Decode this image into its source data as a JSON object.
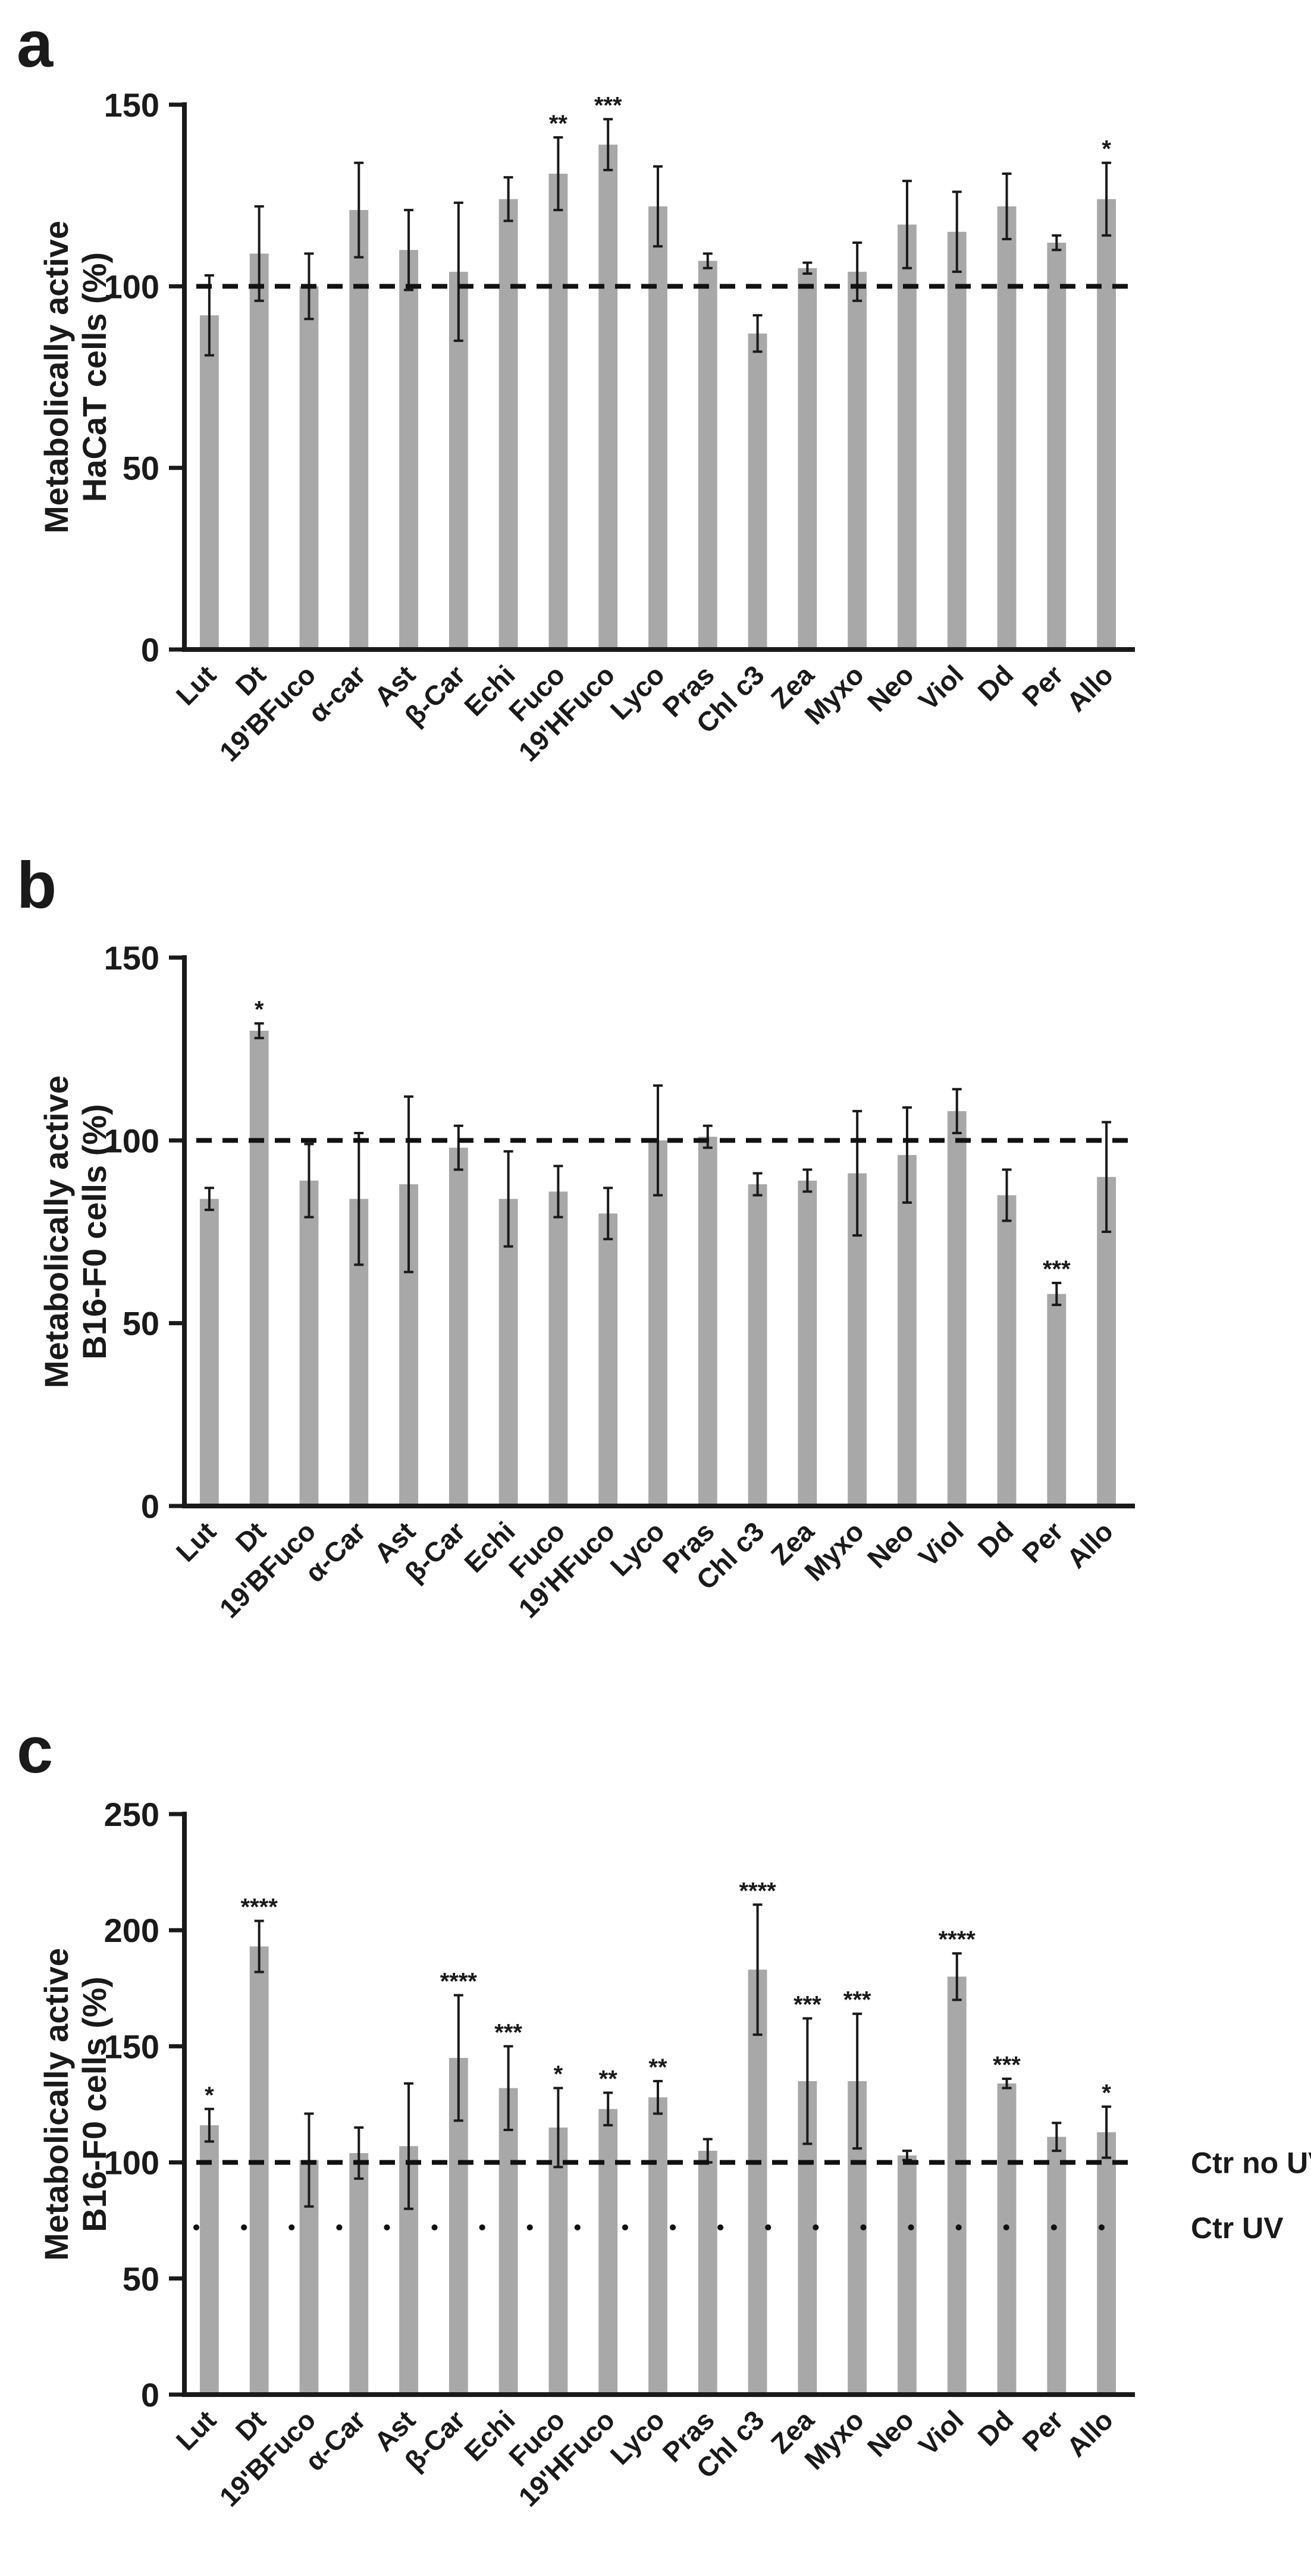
{
  "chart_data": [
    {
      "panel": "a",
      "type": "bar",
      "ylabel_lines": [
        "Metabolically active",
        "HaCaT cells (%)"
      ],
      "ylim": [
        0,
        150
      ],
      "yticks": [
        "0",
        "50",
        "100",
        "150"
      ],
      "categories": [
        "Lut",
        "Dt",
        "19'BFuco",
        "α-car",
        "Ast",
        "β-Car",
        "Echi",
        "Fuco",
        "19'HFuco",
        "Lyco",
        "Pras",
        "Chl c3",
        "Zea",
        "Myxo",
        "Neo",
        "Viol",
        "Dd",
        "Per",
        "Allo"
      ],
      "values": [
        92,
        109,
        100,
        121,
        110,
        104,
        124,
        131,
        139,
        122,
        107,
        87,
        105,
        104,
        117,
        115,
        122,
        112,
        124
      ],
      "errors": [
        11,
        13,
        9,
        13,
        11,
        19,
        6,
        10,
        7,
        11,
        2,
        5,
        1.5,
        8,
        12,
        11,
        9,
        2,
        10
      ],
      "significance": [
        "",
        "",
        "",
        "",
        "",
        "",
        "",
        "**",
        "***",
        "",
        "",
        "",
        "",
        "",
        "",
        "",
        "",
        "",
        "*"
      ],
      "reference_lines": [
        {
          "value": 100,
          "style": "dashed",
          "label": ""
        }
      ]
    },
    {
      "panel": "b",
      "type": "bar",
      "ylabel_lines": [
        "Metabolically active",
        "B16-F0 cells (%)"
      ],
      "ylim": [
        0,
        150
      ],
      "yticks": [
        "0",
        "50",
        "100",
        "150"
      ],
      "categories": [
        "Lut",
        "Dt",
        "19'BFuco",
        "α-Car",
        "Ast",
        "β-Car",
        "Echi",
        "Fuco",
        "19'HFuco",
        "Lyco",
        "Pras",
        "Chl c3",
        "Zea",
        "Myxo",
        "Neo",
        "Viol",
        "Dd",
        "Per",
        "Allo"
      ],
      "values": [
        84,
        130,
        89,
        84,
        88,
        98,
        84,
        86,
        80,
        100,
        101,
        88,
        89,
        91,
        96,
        108,
        85,
        58,
        90
      ],
      "errors": [
        3,
        2,
        10,
        18,
        24,
        6,
        13,
        7,
        7,
        15,
        3,
        3,
        3,
        17,
        13,
        6,
        7,
        3,
        15
      ],
      "significance": [
        "",
        "*",
        "",
        "",
        "",
        "",
        "",
        "",
        "",
        "",
        "",
        "",
        "",
        "",
        "",
        "",
        "",
        "***",
        ""
      ],
      "reference_lines": [
        {
          "value": 100,
          "style": "dashed",
          "label": ""
        }
      ]
    },
    {
      "panel": "c",
      "type": "bar",
      "ylabel_lines": [
        "Metabolically active",
        "B16-F0 cells (%)"
      ],
      "ylim": [
        0,
        250
      ],
      "yticks": [
        "0",
        "50",
        "100",
        "150",
        "200",
        "250"
      ],
      "categories": [
        "Lut",
        "Dt",
        "19'BFuco",
        "α-Car",
        "Ast",
        "β-Car",
        "Echi",
        "Fuco",
        "19'HFuco",
        "Lyco",
        "Pras",
        "Chl c3",
        "Zea",
        "Myxo",
        "Neo",
        "Viol",
        "Dd",
        "Per",
        "Allo"
      ],
      "values": [
        116,
        193,
        101,
        104,
        107,
        145,
        132,
        115,
        123,
        128,
        105,
        183,
        135,
        135,
        103,
        180,
        134,
        111,
        113
      ],
      "errors": [
        7,
        11,
        20,
        11,
        27,
        27,
        18,
        17,
        7,
        7,
        5,
        28,
        27,
        29,
        2,
        10,
        2,
        6,
        11
      ],
      "significance": [
        "*",
        "****",
        "",
        "",
        "",
        "****",
        "***",
        "*",
        "**",
        "**",
        "",
        "****",
        "***",
        "***",
        "",
        "****",
        "***",
        "",
        "*"
      ],
      "reference_lines": [
        {
          "value": 100,
          "style": "dashed",
          "label": "Ctr no UV"
        },
        {
          "value": 72,
          "style": "dotted",
          "label": "Ctr UV"
        }
      ]
    }
  ]
}
